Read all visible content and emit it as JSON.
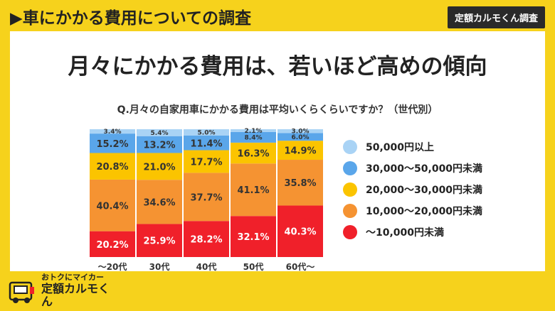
{
  "header": {
    "title": "▶車にかかる費用についての調査",
    "badge": "定額カルモくん調査"
  },
  "headline": "月々にかかる費用は、若いほど高めの傾向",
  "question": "Q.月々の自家用車にかかる費用は平均いくらくらいですか？（世代別）",
  "legend": [
    {
      "label": "50,000円以上",
      "color": "#a9d3f5"
    },
    {
      "label": "30,000〜50,000円未満",
      "color": "#5aa6ea"
    },
    {
      "label": "20,000〜30,000円未満",
      "color": "#fbc400"
    },
    {
      "label": "10,000〜20,000円未満",
      "color": "#f59332"
    },
    {
      "label": "〜10,000円未満",
      "color": "#f0202a"
    }
  ],
  "chart_data": {
    "type": "bar",
    "stacked": true,
    "categories": [
      "〜20代",
      "30代",
      "40代",
      "50代",
      "60代〜"
    ],
    "series": [
      {
        "name": "〜10,000円未満",
        "color": "#f0202a",
        "values": [
          20.2,
          25.9,
          28.2,
          32.1,
          40.3
        ]
      },
      {
        "name": "10,000〜20,000円未満",
        "color": "#f59332",
        "values": [
          40.4,
          34.6,
          37.7,
          41.1,
          35.8
        ]
      },
      {
        "name": "20,000〜30,000円未満",
        "color": "#fbc400",
        "values": [
          20.8,
          21.0,
          17.7,
          16.3,
          14.9
        ]
      },
      {
        "name": "30,000〜50,000円未満",
        "color": "#5aa6ea",
        "values": [
          15.2,
          13.2,
          11.4,
          8.4,
          6.0
        ]
      },
      {
        "name": "50,000円以上",
        "color": "#a9d3f5",
        "values": [
          3.4,
          5.4,
          5.0,
          2.1,
          3.0
        ]
      }
    ],
    "ylim": [
      0,
      100
    ],
    "value_suffix": "%"
  },
  "footer": {
    "line1": "おトクにマイカー",
    "line2": "定額カルモくん"
  }
}
